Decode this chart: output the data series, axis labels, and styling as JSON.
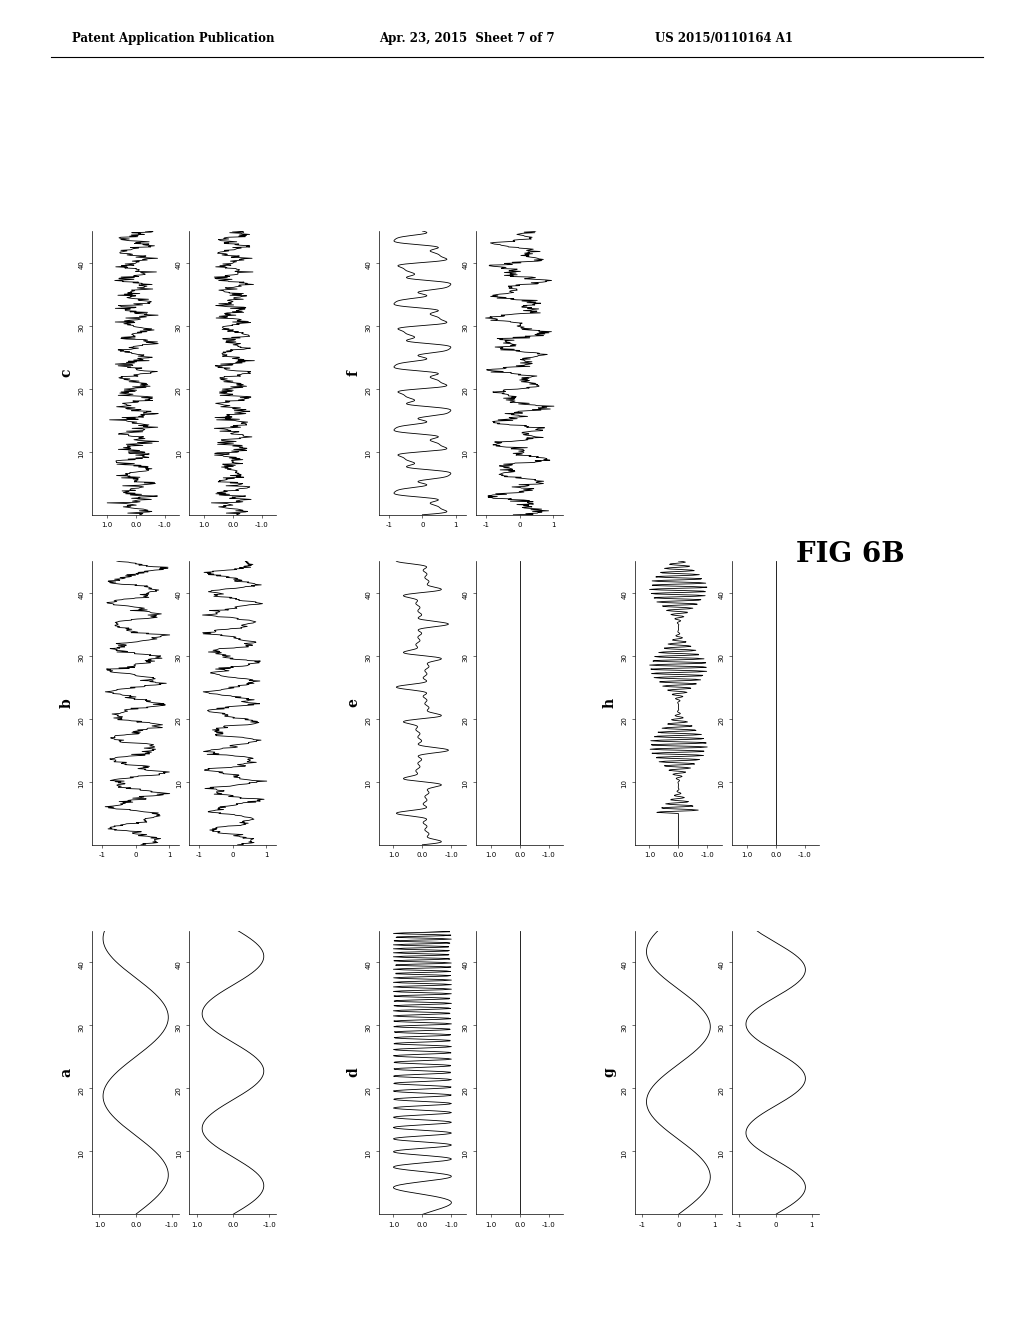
{
  "header_left": "Patent Application Publication",
  "header_mid": "Apr. 23, 2015  Sheet 7 of 7",
  "header_right": "US 2015/0110164 A1",
  "fig_label": "FIG 6B",
  "background_color": "#ffffff",
  "text_color": "#000000",
  "n_points": 50
}
